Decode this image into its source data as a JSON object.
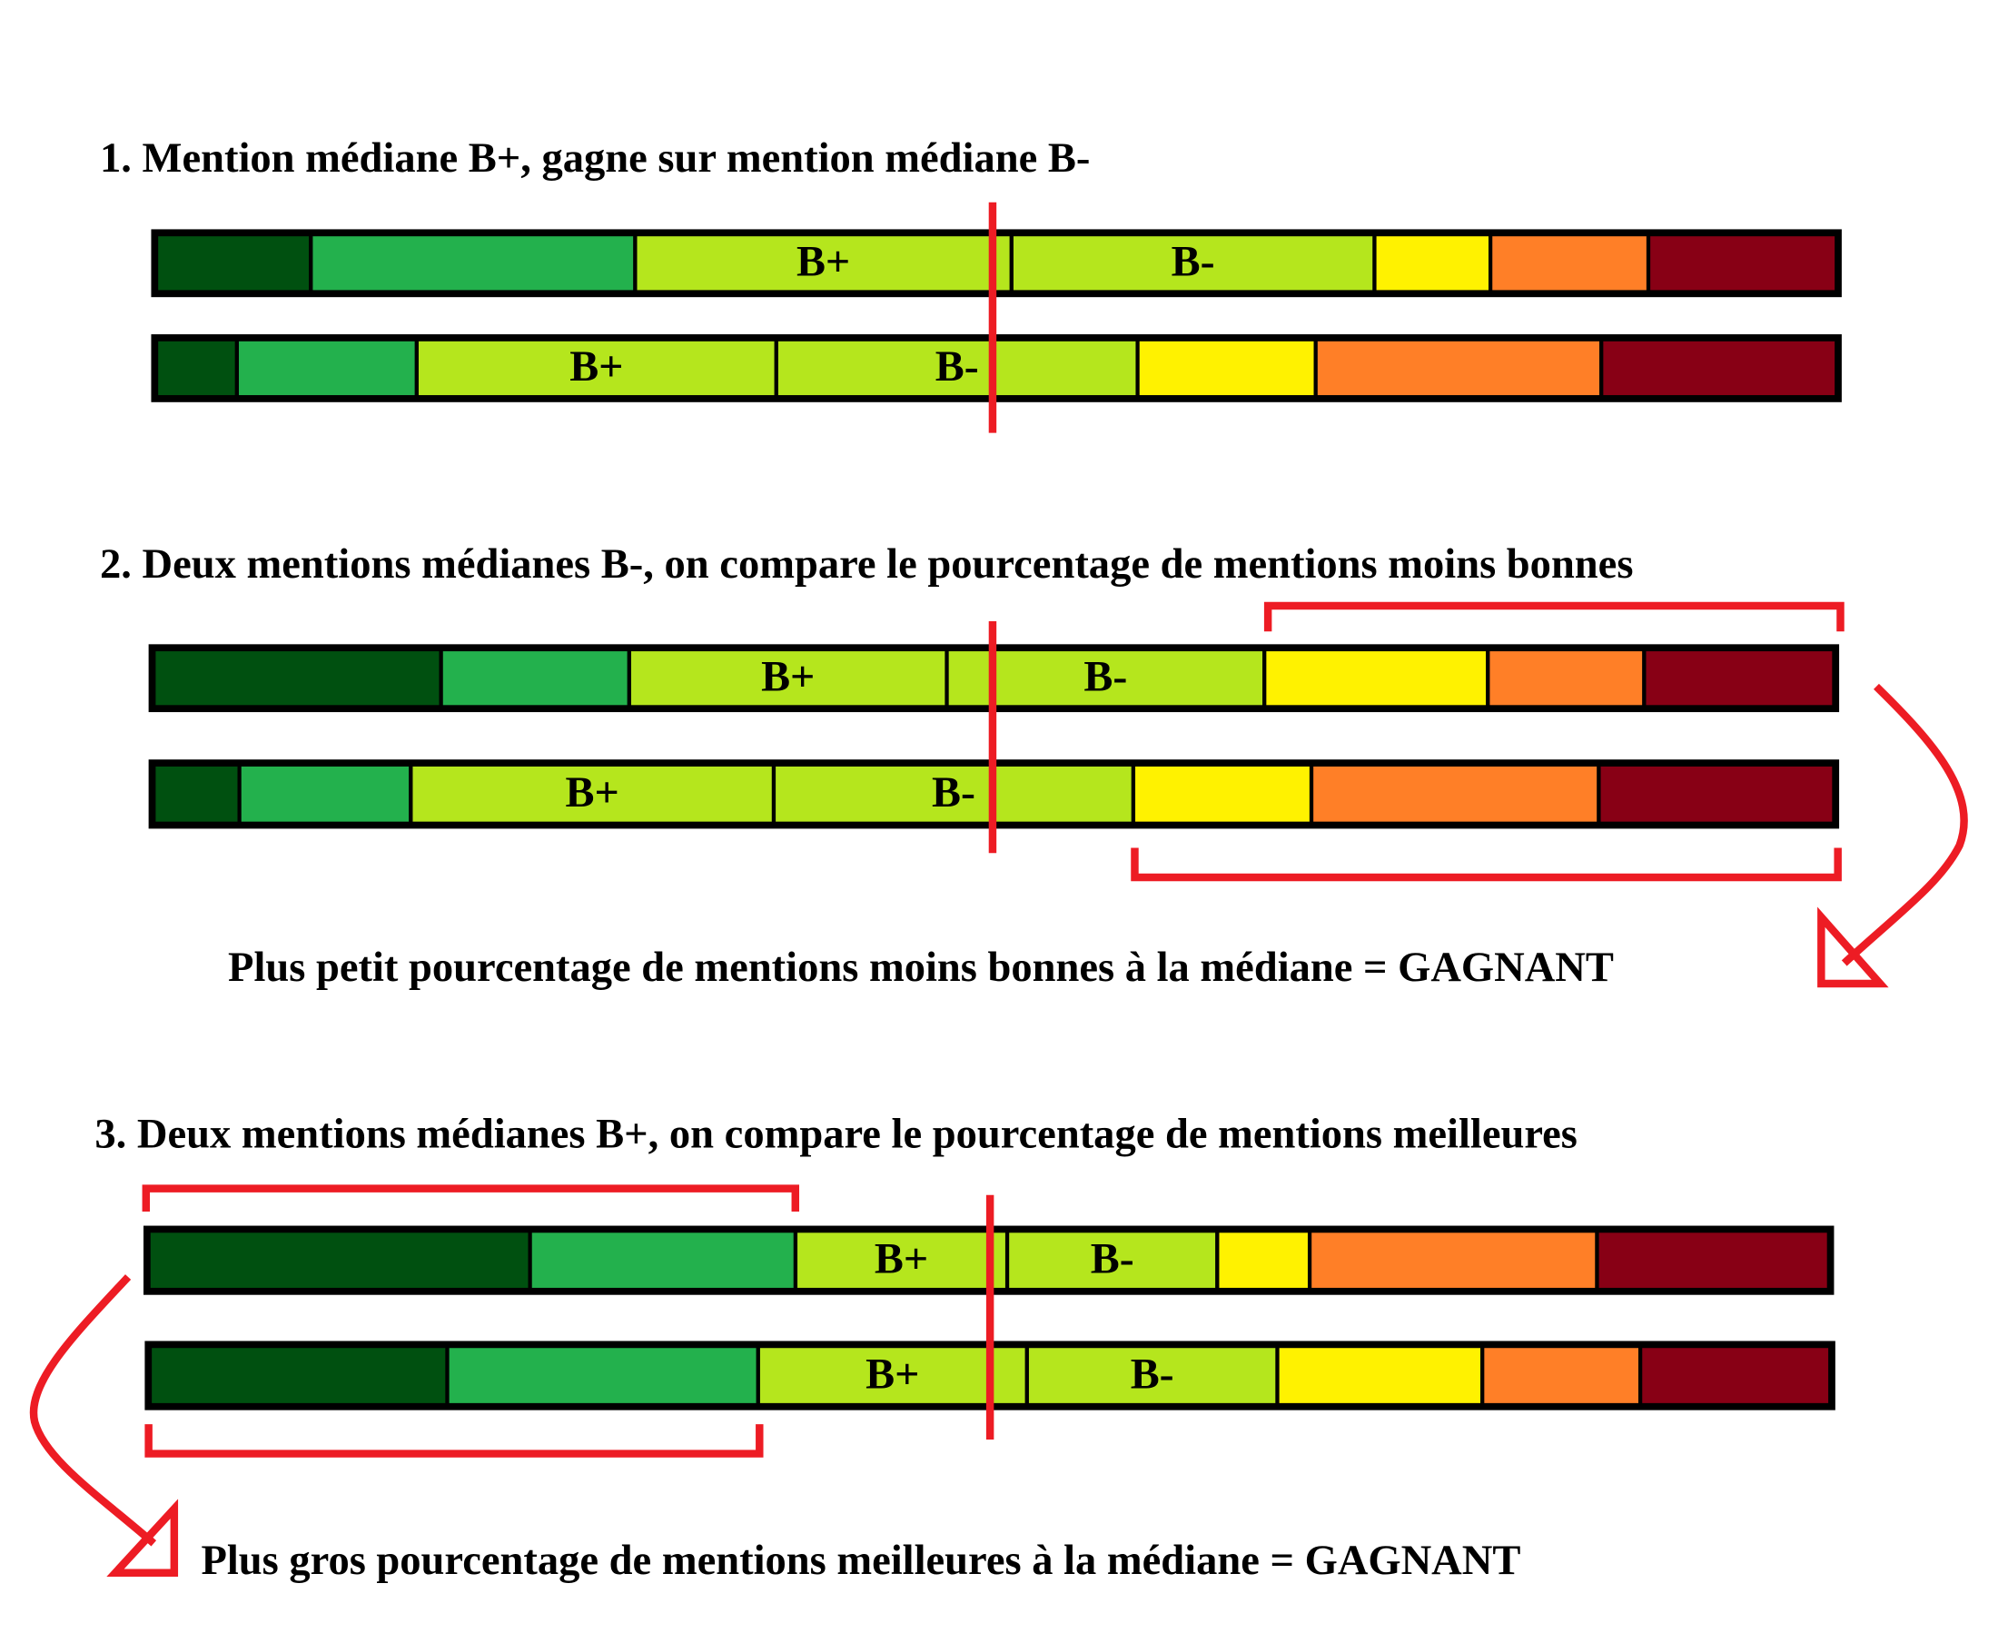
{
  "colors": {
    "grades": [
      "#005010",
      "#23b14d",
      "#b5e61d",
      "#b5e61d",
      "#fff200",
      "#ff7f27",
      "#880015"
    ],
    "annotation": "#ed1c24",
    "border": "#000000"
  },
  "sections": [
    {
      "title": "1. Mention médiane B+, gagne sur mention médiane B-",
      "bars": [
        {
          "shares_percent": [
            9.2,
            19.3,
            22.4,
            21.6,
            6.9,
            9.4,
            11.2
          ],
          "labels": {
            "2": "B+",
            "3": "B-"
          }
        },
        {
          "shares_percent": [
            4.8,
            10.7,
            21.4,
            21.5,
            10.6,
            17.0,
            14.0
          ],
          "labels": {
            "2": "B+",
            "3": "B-"
          }
        }
      ]
    },
    {
      "title": "2. Deux mentions médianes B-, on compare le pourcentage de mentions moins bonnes",
      "bars": [
        {
          "shares_percent": [
            17.1,
            11.2,
            18.9,
            18.9,
            13.3,
            9.3,
            11.3
          ],
          "labels": {
            "2": "B+",
            "3": "B-"
          }
        },
        {
          "shares_percent": [
            5.1,
            10.2,
            21.6,
            21.4,
            10.6,
            17.1,
            14.0
          ],
          "labels": {
            "2": "B+",
            "3": "B-"
          }
        }
      ],
      "conclusion": "Plus petit pourcentage de mentions moins bonnes à la médiane = GAGNANT"
    },
    {
      "title": "3. Deux mentions médianes B+, on compare le pourcentage de mentions meilleures",
      "bars": [
        {
          "shares_percent": [
            22.7,
            15.8,
            12.6,
            12.5,
            5.5,
            17.1,
            13.8
          ],
          "labels": {
            "2": "B+",
            "3": "B-"
          }
        },
        {
          "shares_percent": [
            17.7,
            18.5,
            16.0,
            14.9,
            12.2,
            9.4,
            11.3
          ],
          "labels": {
            "2": "B+",
            "3": "B-"
          }
        }
      ],
      "conclusion": "Plus gros pourcentage de mentions meilleures à la médiane = GAGNANT"
    }
  ]
}
